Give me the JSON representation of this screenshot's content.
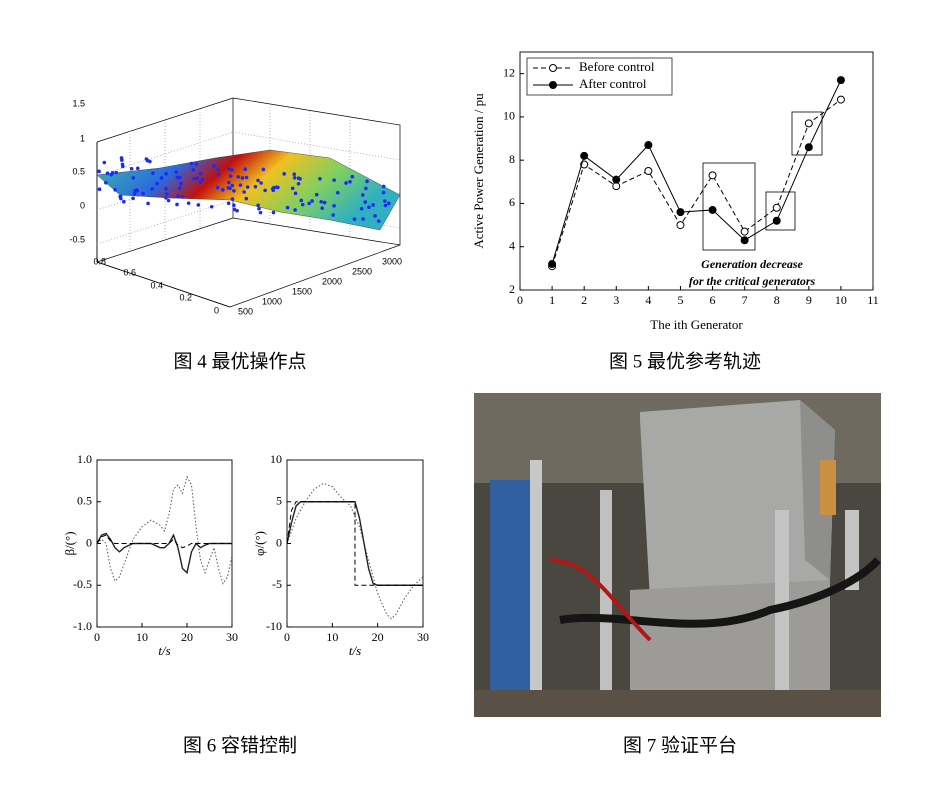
{
  "figures": [
    {
      "caption": "图 4  最优操作点",
      "chart_data": {
        "type": "surface3d",
        "zticks": [
          1.5,
          1,
          0.5,
          0,
          -0.5
        ],
        "yticks": [
          0.8,
          0.6,
          0.4,
          0.2,
          0
        ],
        "xticks": [
          500,
          1000,
          1500,
          2000,
          2500,
          3000
        ]
      }
    },
    {
      "caption": "图 5 最优参考轨迹",
      "chart_data": {
        "type": "line",
        "x_label": "The ith Generator",
        "y_label": "Active Power Generation / pu",
        "annotation": [
          "Generation decrease",
          "for the critical generators"
        ],
        "xlim": [
          0,
          11
        ],
        "xticks": [
          0,
          1,
          2,
          3,
          4,
          5,
          6,
          7,
          8,
          9,
          10,
          11
        ],
        "ylim": [
          2,
          13
        ],
        "yticks": [
          2,
          4,
          6,
          8,
          10,
          12
        ],
        "legend": "upper left",
        "series": [
          {
            "name": "Before control",
            "color": "#000000",
            "dash": true,
            "marker": "open",
            "x": [
              1,
              2,
              3,
              4,
              5,
              6,
              7,
              8,
              9,
              10
            ],
            "values": [
              3.1,
              7.8,
              6.8,
              7.5,
              5.0,
              7.3,
              4.7,
              5.8,
              9.7,
              10.8
            ]
          },
          {
            "name": "After control",
            "color": "#000000",
            "dash": false,
            "marker": "filled",
            "x": [
              1,
              2,
              3,
              4,
              5,
              6,
              7,
              8,
              9,
              10
            ],
            "values": [
              3.2,
              8.2,
              7.1,
              8.7,
              5.6,
              5.7,
              4.3,
              5.2,
              8.6,
              11.7
            ]
          }
        ]
      }
    },
    {
      "caption": "图 6  容错控制",
      "chart_data": [
        {
          "type": "line",
          "x_label": "t/s",
          "y_label": "β/(°)",
          "xlim": [
            0,
            30
          ],
          "xticks": [
            0,
            10,
            20,
            30
          ],
          "ylim": [
            -1,
            1
          ],
          "yticks": [
            {
              "value": 1,
              "label": "1.0"
            },
            0.5,
            0,
            -0.5,
            {
              "value": -1,
              "label": "-1.0"
            }
          ],
          "series": [
            {
              "color": "#555555",
              "style": "dotted",
              "x": [
                0,
                1,
                2,
                3,
                4,
                5,
                6,
                8,
                10,
                12,
                14,
                15,
                16,
                17,
                18,
                19,
                20,
                21,
                22,
                23,
                24,
                25,
                26,
                27,
                28,
                29,
                30
              ],
              "values": [
                0,
                0.05,
                0.0,
                -0.3,
                -0.45,
                -0.4,
                -0.25,
                0.05,
                0.2,
                0.28,
                0.22,
                0.15,
                0.35,
                0.65,
                0.7,
                0.6,
                0.8,
                0.7,
                0.2,
                -0.2,
                -0.35,
                -0.2,
                -0.05,
                -0.3,
                -0.48,
                -0.4,
                -0.15
              ]
            },
            {
              "color": "#222222",
              "style": "solid",
              "x": [
                0,
                1,
                2,
                3,
                4,
                5,
                6,
                8,
                10,
                12,
                14,
                15,
                16,
                17,
                18,
                19,
                20,
                21,
                22,
                23,
                24,
                25,
                26,
                27,
                28,
                29,
                30
              ],
              "values": [
                0,
                0.1,
                0.12,
                0.05,
                -0.05,
                -0.1,
                -0.05,
                0,
                0,
                0,
                -0.05,
                -0.05,
                0.0,
                0.1,
                -0.05,
                -0.3,
                -0.35,
                -0.1,
                0.0,
                -0.05,
                -0.02,
                0,
                0,
                0,
                0,
                0,
                0
              ]
            },
            {
              "color": "#000000",
              "style": "dashed",
              "x": [
                0,
                1,
                2,
                3,
                4,
                5,
                6,
                8,
                10,
                12,
                14,
                15,
                16,
                17,
                18,
                19,
                20,
                21,
                22,
                23,
                24,
                25,
                26,
                27,
                28,
                29,
                30
              ],
              "values": [
                0,
                0.08,
                0.1,
                0.03,
                0,
                0,
                0,
                0,
                0,
                0,
                0,
                0,
                0,
                0.05,
                -0.02,
                -0.05,
                -0.03,
                0,
                0,
                0,
                0,
                0,
                0,
                0,
                0,
                0,
                0
              ]
            }
          ]
        },
        {
          "type": "line",
          "x_label": "t/s",
          "y_label": "φ/(°)",
          "xlim": [
            0,
            30
          ],
          "xticks": [
            0,
            10,
            20,
            30
          ],
          "ylim": [
            -10,
            10
          ],
          "yticks": [
            10,
            5,
            0,
            -5,
            -10
          ],
          "series": [
            {
              "color": "#555555",
              "style": "dotted",
              "x": [
                0,
                2,
                4,
                6,
                8,
                10,
                12,
                14,
                16,
                18,
                20,
                22,
                23,
                24,
                26,
                28,
                30
              ],
              "values": [
                0,
                3,
                5,
                6.5,
                7.2,
                6.8,
                5.5,
                4.5,
                2,
                -2,
                -6,
                -8.5,
                -9,
                -8.5,
                -6.5,
                -5,
                -4
              ]
            },
            {
              "color": "#222222",
              "style": "solid",
              "x": [
                0,
                1,
                2,
                3,
                15,
                16,
                17,
                18,
                19,
                20,
                30
              ],
              "values": [
                0,
                2.5,
                4.5,
                5,
                5,
                3,
                0,
                -3,
                -4.8,
                -5,
                -5
              ]
            },
            {
              "color": "#000000",
              "style": "dashed",
              "x": [
                0,
                1,
                2,
                15,
                15,
                30
              ],
              "values": [
                0,
                4,
                5,
                5,
                -5,
                -5
              ]
            }
          ]
        }
      ]
    },
    {
      "caption": "图 7  验证平台"
    }
  ]
}
